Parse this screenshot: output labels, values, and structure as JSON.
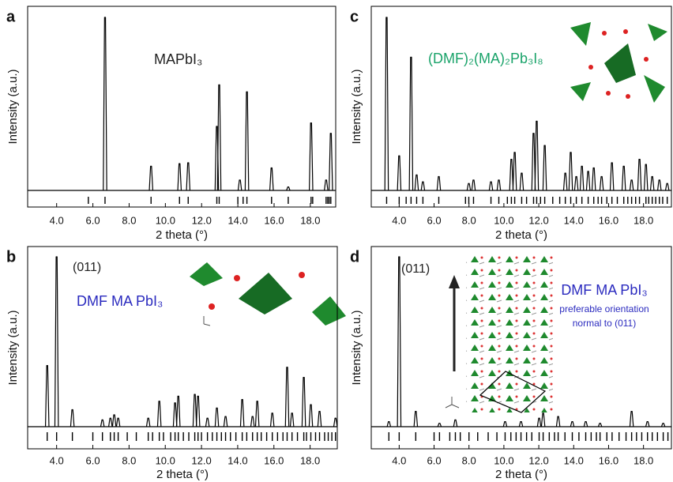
{
  "chart_data": [
    {
      "type": "xrd",
      "panel_label": "a",
      "xlabel": "2 theta (°)",
      "ylabel": "Intensity (a.u.)",
      "color": "#000000",
      "xlim": [
        2.4,
        19.4
      ],
      "ylim": [
        0,
        100
      ],
      "xticks": [
        {
          "value": 4,
          "label": "4.0"
        },
        {
          "value": 6,
          "label": "6.0"
        },
        {
          "value": 8,
          "label": "8.0"
        },
        {
          "value": 10,
          "label": "10.0"
        },
        {
          "value": 12,
          "label": "12.0"
        },
        {
          "value": 14,
          "label": "14.0"
        },
        {
          "value": 16,
          "label": "16.0"
        },
        {
          "value": 18,
          "label": "18.0"
        }
      ],
      "x": [
        6.67,
        9.21,
        10.78,
        11.26,
        12.84,
        12.97,
        14.11,
        14.5,
        15.86,
        16.78,
        18.04,
        18.87,
        19.13
      ],
      "values": [
        100,
        14,
        15.5,
        16,
        37,
        61,
        6,
        57,
        13,
        2,
        39,
        6,
        33
      ],
      "reflections": [
        5.75,
        6.67,
        9.21,
        10.78,
        11.26,
        12.84,
        12.97,
        14.0,
        14.29,
        14.5,
        15.86,
        16.78,
        18.04,
        18.13,
        18.87,
        18.96,
        19.04,
        19.13
      ],
      "annotations": [
        {
          "text": "MAPbI₃",
          "color": "#222222"
        }
      ]
    },
    {
      "type": "xrd",
      "panel_label": "b",
      "xlabel": "2 theta (°)",
      "ylabel": "Intensity (a.u.)",
      "color": "#000000",
      "xlim": [
        2.4,
        19.5
      ],
      "ylim": [
        0,
        100
      ],
      "xticks": [
        {
          "value": 4,
          "label": "4.0"
        },
        {
          "value": 6,
          "label": "6.0"
        },
        {
          "value": 8,
          "label": "8.0"
        },
        {
          "value": 10,
          "label": "10.0"
        },
        {
          "value": 12,
          "label": "12.0"
        },
        {
          "value": 14,
          "label": "14.0"
        },
        {
          "value": 16,
          "label": "16.0"
        },
        {
          "value": 18,
          "label": "18.0"
        }
      ],
      "x": [
        3.48,
        4.0,
        4.87,
        6.53,
        6.97,
        7.18,
        7.4,
        9.06,
        9.67,
        10.54,
        10.72,
        11.63,
        11.81,
        12.33,
        12.85,
        13.33,
        14.25,
        14.82,
        15.08,
        15.91,
        16.73,
        17.0,
        17.65,
        18.04,
        18.52,
        19.4
      ],
      "values": [
        36,
        100,
        10,
        4,
        5,
        7,
        5,
        5,
        15,
        14,
        18,
        19,
        18,
        5,
        11,
        6,
        16,
        6,
        15,
        8,
        35,
        8,
        29,
        13,
        9,
        5
      ],
      "reflections": [
        3.48,
        4.0,
        4.87,
        6.0,
        6.53,
        6.97,
        7.18,
        7.4,
        7.9,
        8.4,
        9.06,
        9.3,
        9.67,
        9.9,
        10.3,
        10.54,
        10.72,
        11.0,
        11.3,
        11.63,
        11.81,
        12.0,
        12.33,
        12.6,
        12.85,
        13.1,
        13.33,
        13.6,
        13.9,
        14.25,
        14.5,
        14.82,
        15.08,
        15.3,
        15.6,
        15.91,
        16.2,
        16.5,
        16.73,
        17.0,
        17.3,
        17.65,
        17.8,
        18.04,
        18.3,
        18.52,
        18.8,
        19.0,
        19.2,
        19.4
      ],
      "annotations": [
        {
          "text": "(011)",
          "color": "#222222"
        },
        {
          "text": "DMF MA PbI₃",
          "color": "#2b2bbf"
        }
      ]
    },
    {
      "type": "xrd",
      "panel_label": "c",
      "xlabel": "2 theta (°)",
      "ylabel": "Intensity (a.u.)",
      "color": "#000000",
      "xlim": [
        2.4,
        19.6
      ],
      "ylim": [
        0,
        100
      ],
      "xticks": [
        {
          "value": 4,
          "label": "4.0"
        },
        {
          "value": 6,
          "label": "6.0"
        },
        {
          "value": 8,
          "label": "8.0"
        },
        {
          "value": 10,
          "label": "10.0"
        },
        {
          "value": 12,
          "label": "12.0"
        },
        {
          "value": 14,
          "label": "14.0"
        },
        {
          "value": 16,
          "label": "16.0"
        },
        {
          "value": 18,
          "label": "18.0"
        }
      ],
      "x": [
        3.28,
        4.0,
        4.68,
        5.0,
        5.36,
        6.27,
        7.99,
        8.26,
        9.26,
        9.71,
        10.43,
        10.62,
        11.02,
        11.7,
        11.88,
        12.34,
        13.52,
        13.83,
        14.15,
        14.47,
        14.83,
        15.15,
        15.6,
        16.19,
        16.87,
        17.32,
        17.77,
        18.14,
        18.5,
        18.91,
        19.36
      ],
      "values": [
        100,
        20,
        77,
        9,
        5,
        8,
        4,
        6,
        5,
        6,
        18,
        22,
        10,
        33,
        40,
        26,
        10,
        22,
        8,
        14,
        11,
        13,
        8,
        16,
        14,
        6,
        18,
        15,
        8,
        6,
        4
      ],
      "reflections": [
        3.28,
        4.0,
        4.4,
        4.68,
        5.0,
        5.36,
        6.27,
        7.8,
        7.99,
        8.26,
        9.26,
        9.71,
        10.2,
        10.43,
        10.62,
        11.02,
        11.3,
        11.7,
        11.88,
        12.1,
        12.34,
        12.8,
        13.2,
        13.52,
        13.83,
        14.15,
        14.47,
        14.83,
        15.15,
        15.4,
        15.6,
        15.9,
        16.19,
        16.5,
        16.87,
        17.1,
        17.32,
        17.55,
        17.77,
        18.14,
        18.3,
        18.5,
        18.7,
        18.91,
        19.1,
        19.36
      ],
      "annotations": [
        {
          "text": "(DMF)₂(MA)₂Pb₃I₈",
          "color": "#1aa36a"
        }
      ]
    },
    {
      "type": "xrd",
      "panel_label": "d",
      "xlabel": "2 theta (°)",
      "ylabel": "Intensity (a.u.)",
      "color": "#000000",
      "xlim": [
        2.4,
        19.6
      ],
      "ylim": [
        0,
        100
      ],
      "xticks": [
        {
          "value": 4,
          "label": "4.0"
        },
        {
          "value": 6,
          "label": "6.0"
        },
        {
          "value": 8,
          "label": "8.0"
        },
        {
          "value": 10,
          "label": "10.0"
        },
        {
          "value": 12,
          "label": "12.0"
        },
        {
          "value": 14,
          "label": "14.0"
        },
        {
          "value": 16,
          "label": "16.0"
        },
        {
          "value": 18,
          "label": "18.0"
        }
      ],
      "x": [
        3.41,
        4.0,
        4.95,
        6.31,
        7.22,
        10.07,
        10.98,
        12.02,
        12.25,
        13.11,
        13.92,
        14.69,
        15.51,
        17.32,
        18.23,
        19.13
      ],
      "values": [
        3,
        100,
        9,
        2,
        4,
        3,
        3,
        5,
        8,
        6,
        3,
        3,
        2,
        9,
        3,
        2
      ],
      "reflections": [
        3.41,
        4.0,
        4.95,
        6.0,
        6.31,
        6.9,
        7.22,
        7.5,
        8.0,
        8.5,
        9.1,
        9.6,
        10.07,
        10.4,
        10.7,
        10.98,
        11.3,
        11.6,
        12.02,
        12.25,
        12.6,
        12.9,
        13.11,
        13.5,
        13.92,
        14.3,
        14.69,
        15.0,
        15.3,
        15.51,
        15.9,
        16.2,
        16.6,
        17.0,
        17.32,
        17.6,
        17.9,
        18.23,
        18.5,
        18.8,
        19.13,
        19.4
      ],
      "annotations": [
        {
          "text": "(011)",
          "color": "#222222"
        },
        {
          "text": "DMF MA PbI₃",
          "color": "#2b2bbf"
        },
        {
          "text": "preferable orientation",
          "color": "#2b2bbf"
        },
        {
          "text": "normal to (011)",
          "color": "#2b2bbf"
        }
      ]
    }
  ]
}
